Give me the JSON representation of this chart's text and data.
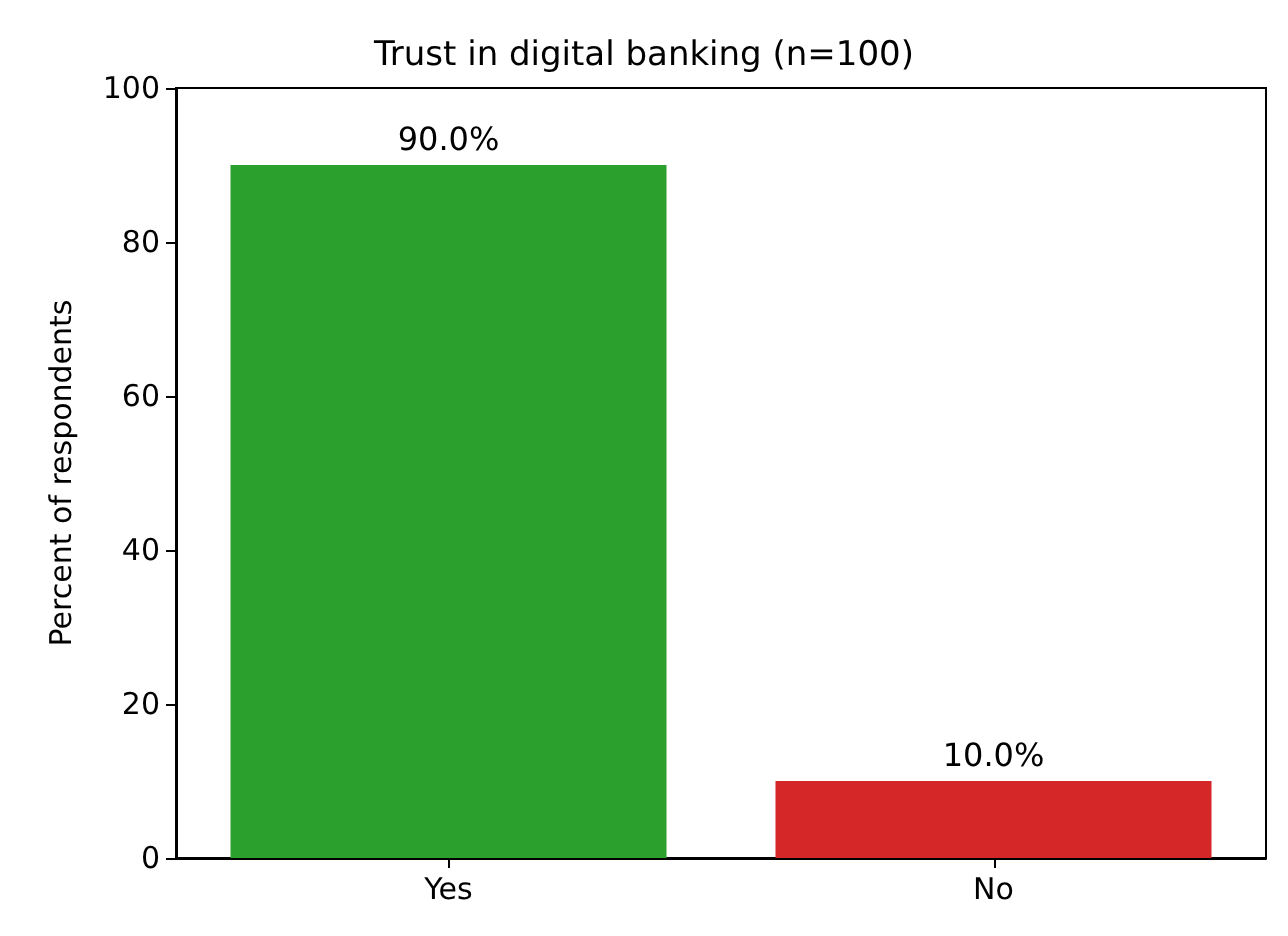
{
  "chart_data": {
    "type": "bar",
    "title": "Trust in digital banking (n=100)",
    "ylabel": "Percent of respondents",
    "categories": [
      "Yes",
      "No"
    ],
    "values": [
      90,
      10
    ],
    "colors": [
      "#2ca02c",
      "#d62728"
    ],
    "value_labels": [
      "90.0%",
      "10.0%"
    ],
    "ylim": [
      0,
      100
    ],
    "yticks": [
      0,
      20,
      40,
      60,
      80,
      100
    ],
    "grid": false
  }
}
